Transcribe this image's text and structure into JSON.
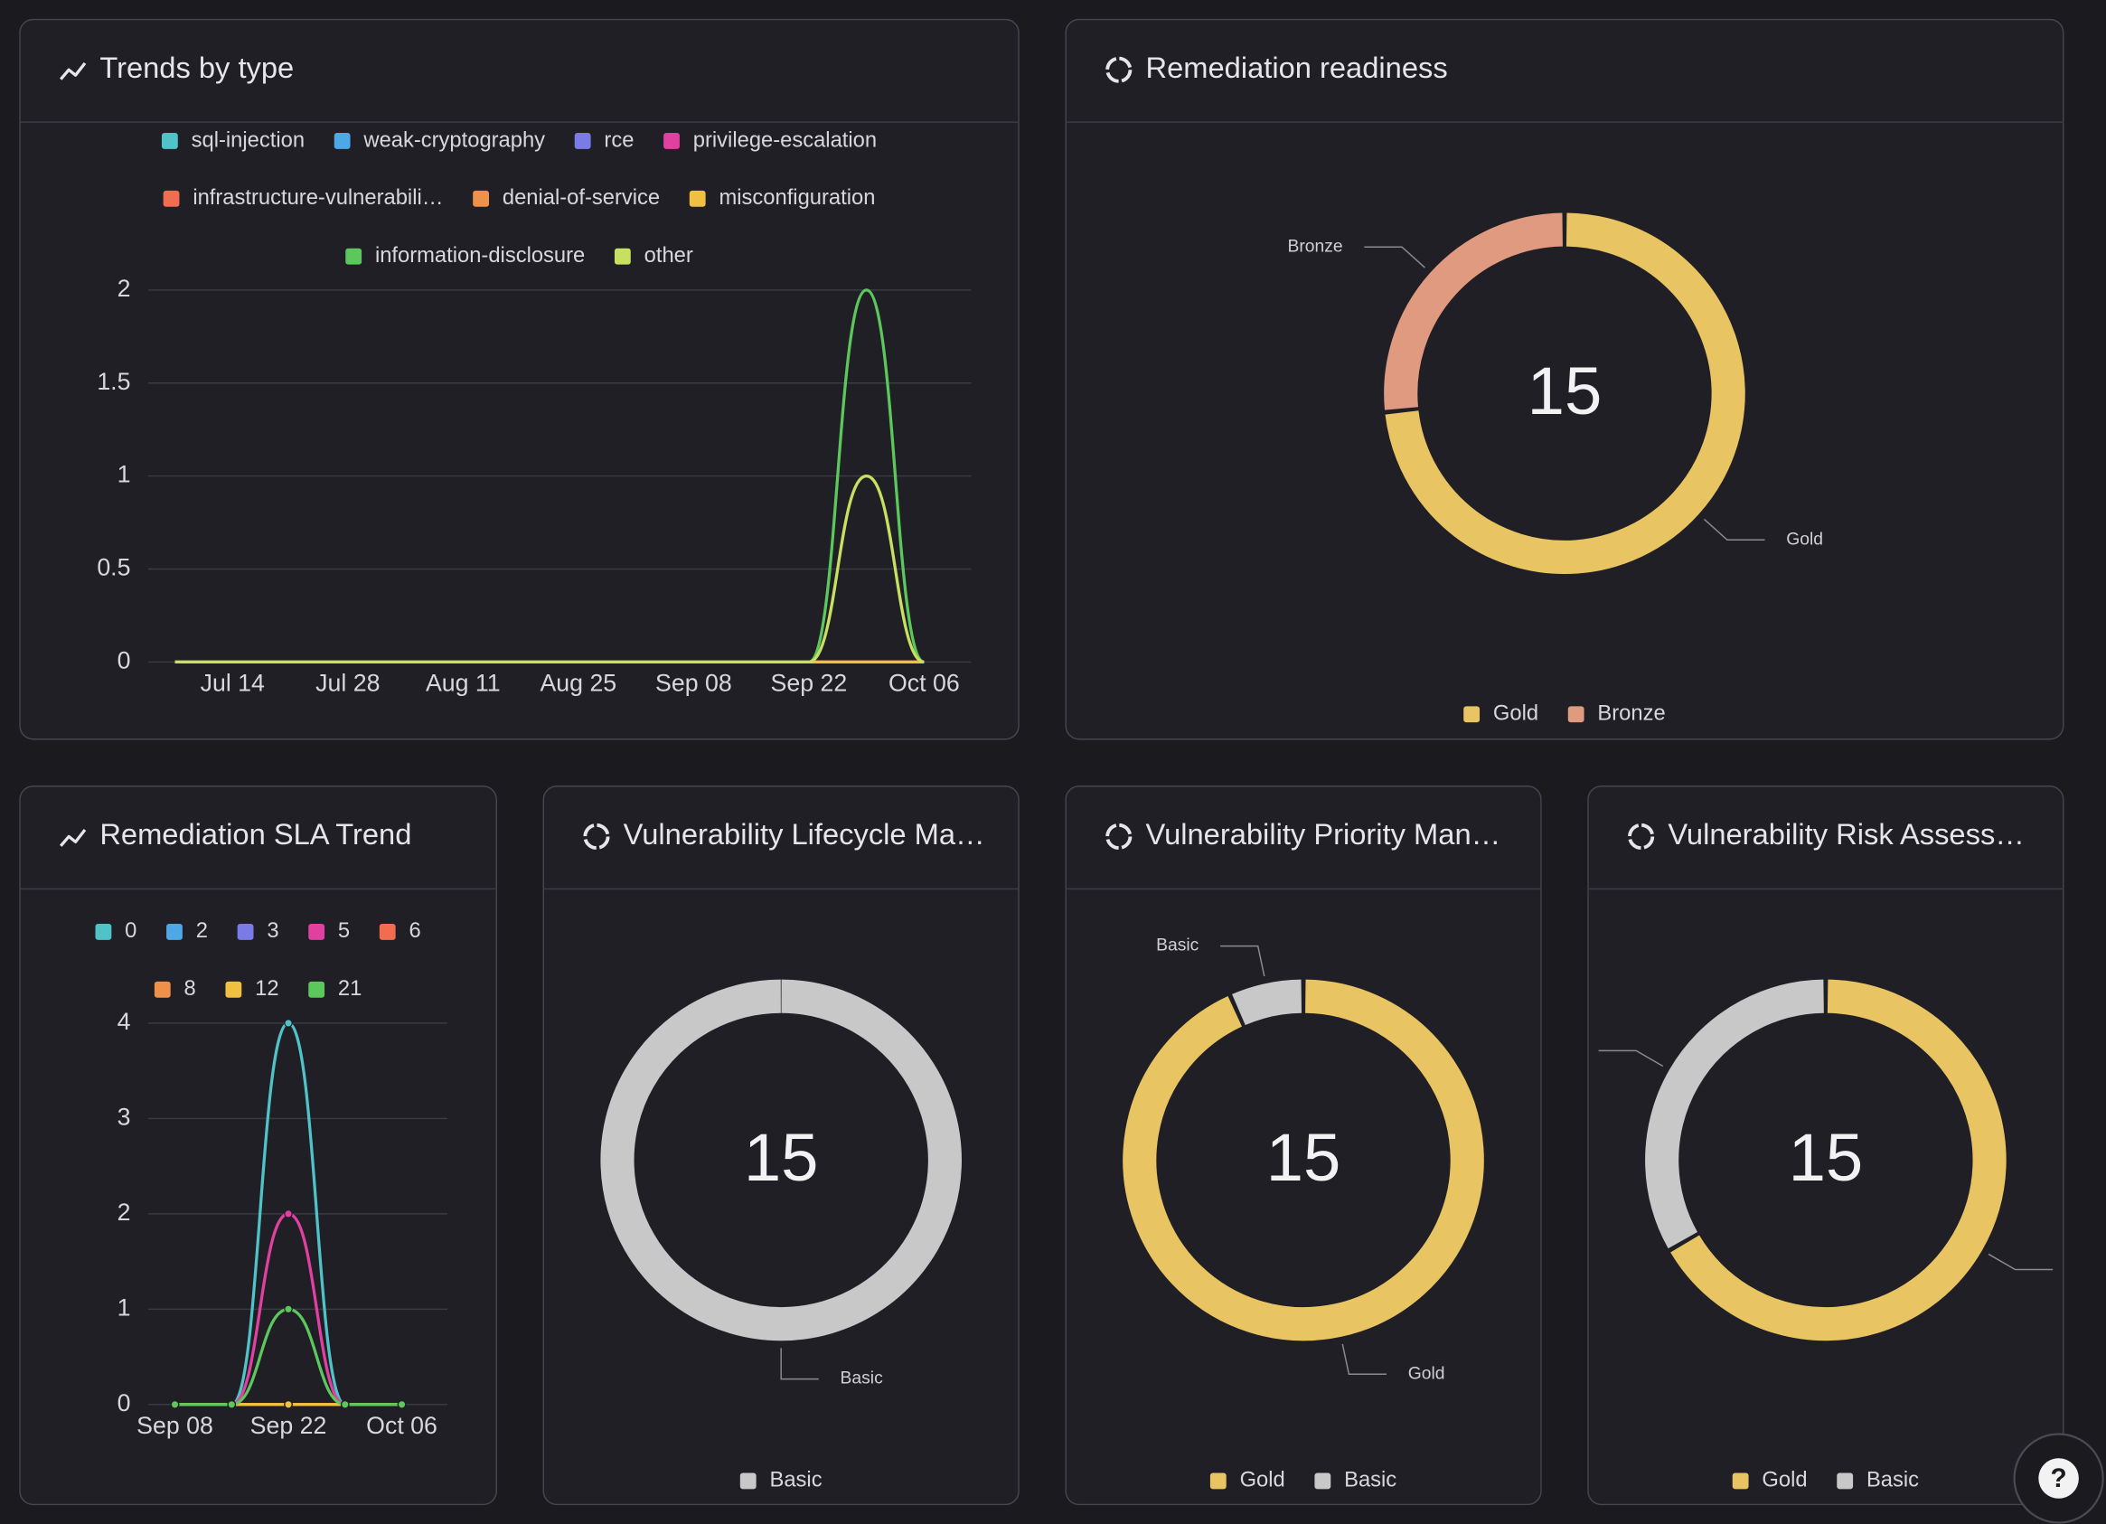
{
  "chart_data": [
    {
      "type": "line",
      "title": "Trends by type",
      "categories": [
        null,
        "Jul 14",
        null,
        "Jul 28",
        null,
        "Aug 11",
        null,
        "Aug 25",
        null,
        "Sep 08",
        null,
        "Sep 22",
        null,
        "Oct 06"
      ],
      "series": [
        {
          "name": "sql-injection",
          "color": "#4fc3c7",
          "values": [
            0,
            0,
            0,
            0,
            0,
            0,
            0,
            0,
            0,
            0,
            0,
            0,
            0,
            0
          ]
        },
        {
          "name": "weak-cryptography",
          "color": "#4ea8e8",
          "values": [
            0,
            0,
            0,
            0,
            0,
            0,
            0,
            0,
            0,
            0,
            0,
            0,
            0,
            0
          ]
        },
        {
          "name": "rce",
          "color": "#7b7be8",
          "values": [
            0,
            0,
            0,
            0,
            0,
            0,
            0,
            0,
            0,
            0,
            0,
            0,
            0,
            0
          ]
        },
        {
          "name": "privilege-escalation",
          "color": "#e040a0",
          "values": [
            0,
            0,
            0,
            0,
            0,
            0,
            0,
            0,
            0,
            0,
            0,
            0,
            0,
            0
          ]
        },
        {
          "name": "infrastructure-vulnerabili…",
          "color": "#f26c50",
          "values": [
            0,
            0,
            0,
            0,
            0,
            0,
            0,
            0,
            0,
            0,
            0,
            0,
            0,
            0
          ]
        },
        {
          "name": "denial-of-service",
          "color": "#f0914a",
          "values": [
            0,
            0,
            0,
            0,
            0,
            0,
            0,
            0,
            0,
            0,
            0,
            0,
            0,
            0
          ]
        },
        {
          "name": "misconfiguration",
          "color": "#f0c040",
          "values": [
            0,
            0,
            0,
            0,
            0,
            0,
            0,
            0,
            0,
            0,
            0,
            0,
            0,
            0
          ]
        },
        {
          "name": "information-disclosure",
          "color": "#5cc85c",
          "values": [
            0,
            0,
            0,
            0,
            0,
            0,
            0,
            0,
            0,
            0,
            0,
            0,
            2,
            0
          ]
        },
        {
          "name": "other",
          "color": "#c8e060",
          "values": [
            0,
            0,
            0,
            0,
            0,
            0,
            0,
            0,
            0,
            0,
            0,
            0,
            1,
            0
          ]
        }
      ],
      "ylim": [
        0,
        2
      ],
      "yticks": [
        0,
        0.5,
        1,
        1.5,
        2
      ],
      "grid": true,
      "markers": false
    },
    {
      "type": "donut",
      "title": "Remediation readiness",
      "total": 15,
      "categories": [
        "Gold",
        "Bronze"
      ],
      "values": [
        11,
        4
      ],
      "colors": [
        "#e8c462",
        "#e09a80"
      ]
    },
    {
      "type": "line",
      "title": "Remediation SLA Trend",
      "categories": [
        "Sep 08",
        null,
        "Sep 22",
        null,
        "Oct 06"
      ],
      "series": [
        {
          "name": "0",
          "color": "#4fc3c7",
          "values": [
            0,
            0,
            4,
            0,
            0
          ]
        },
        {
          "name": "2",
          "color": "#4ea8e8",
          "values": [
            0,
            0,
            0,
            0,
            0
          ]
        },
        {
          "name": "3",
          "color": "#7b7be8",
          "values": [
            0,
            0,
            0,
            0,
            0
          ]
        },
        {
          "name": "5",
          "color": "#e040a0",
          "values": [
            0,
            0,
            2,
            0,
            0
          ]
        },
        {
          "name": "6",
          "color": "#f26c50",
          "values": [
            0,
            0,
            0,
            0,
            0
          ]
        },
        {
          "name": "8",
          "color": "#f0914a",
          "values": [
            0,
            0,
            0,
            0,
            0
          ]
        },
        {
          "name": "12",
          "color": "#f0c040",
          "values": [
            0,
            0,
            0,
            0,
            0
          ]
        },
        {
          "name": "21",
          "color": "#5cc85c",
          "values": [
            0,
            0,
            1,
            0,
            0
          ]
        }
      ],
      "ylim": [
        0,
        4
      ],
      "yticks": [
        0,
        1,
        2,
        3,
        4
      ],
      "grid": true,
      "markers": true
    },
    {
      "type": "donut",
      "title": "Vulnerability Lifecycle Ma…",
      "total": 15,
      "categories": [
        "Basic"
      ],
      "values": [
        15
      ],
      "colors": [
        "#c8c8c8"
      ]
    },
    {
      "type": "donut",
      "title": "Vulnerability Priority Man…",
      "total": 15,
      "categories": [
        "Gold",
        "Basic"
      ],
      "values": [
        14,
        1
      ],
      "colors": [
        "#e8c462",
        "#c8c8c8"
      ]
    },
    {
      "type": "donut",
      "title": "Vulnerability Risk Assess…",
      "total": 15,
      "categories": [
        "Gold",
        "Basic"
      ],
      "values": [
        10,
        5
      ],
      "colors": [
        "#e8c462",
        "#c8c8c8"
      ]
    }
  ],
  "help_button": "?"
}
